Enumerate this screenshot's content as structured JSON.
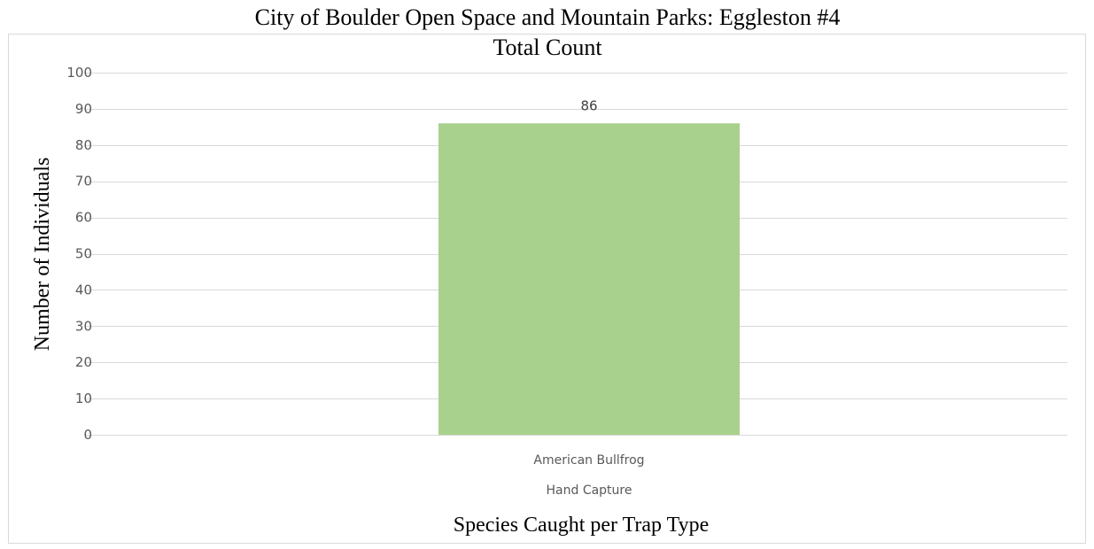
{
  "chart_data": {
    "type": "bar",
    "title": "City of Boulder Open Space and Mountain Parks: Eggleston #4",
    "subtitle": "Total Count",
    "xlabel": "Species Caught per Trap Type",
    "ylabel": "Number of Individuals",
    "categories": [
      "American Bullfrog"
    ],
    "category_group": "Hand Capture",
    "values": [
      86
    ],
    "data_labels": [
      "86"
    ],
    "ylim": [
      0,
      100
    ],
    "yticks": [
      0,
      10,
      20,
      30,
      40,
      50,
      60,
      70,
      80,
      90,
      100
    ],
    "grid": true,
    "legend": "none",
    "colors": {
      "bar": "#a9d18e",
      "grid": "#d9d9d9",
      "frame": "#d9d9d9"
    }
  }
}
